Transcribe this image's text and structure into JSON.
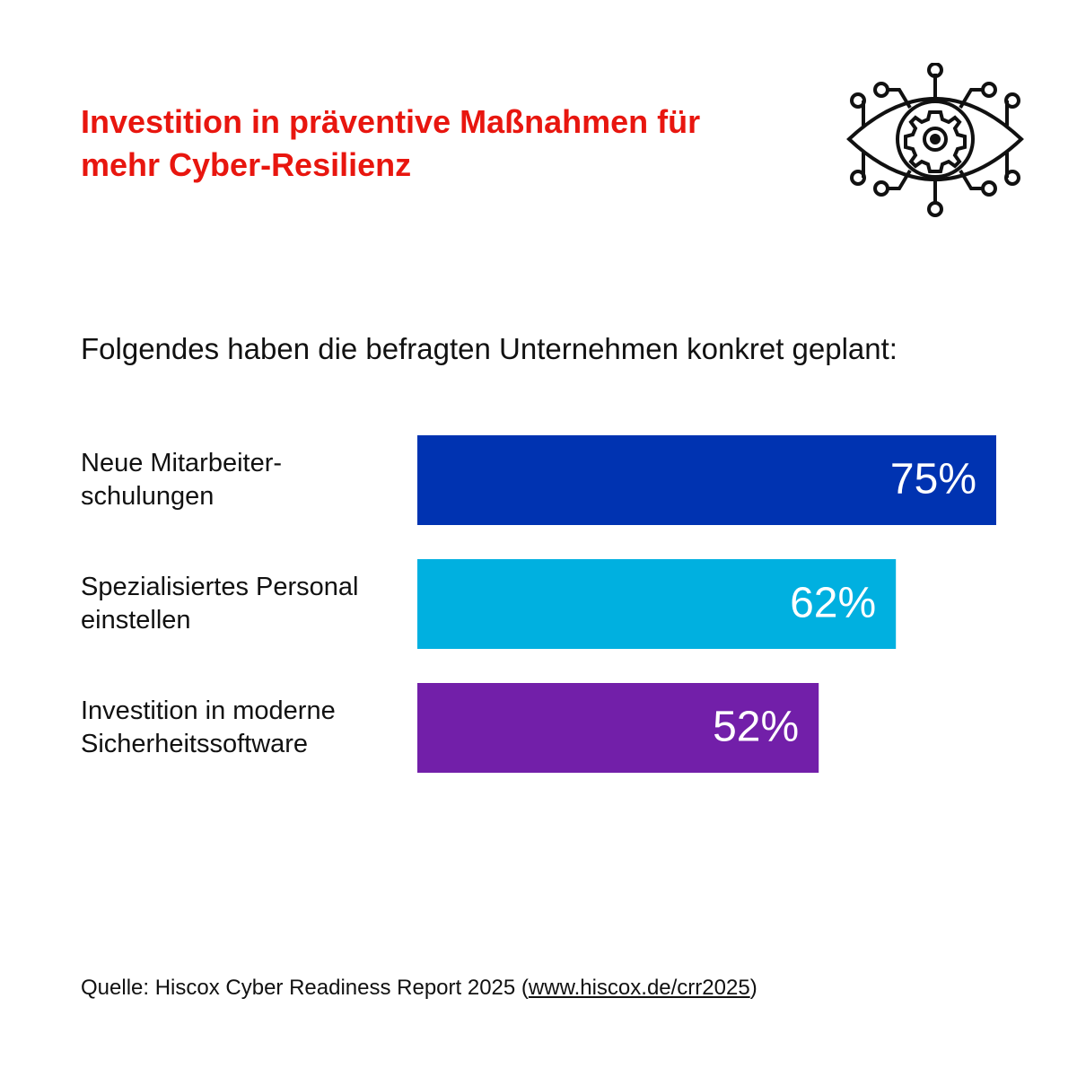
{
  "chart_data": {
    "type": "bar",
    "orientation": "horizontal",
    "title": "Investition in präventive Maßnahmen für mehr Cyber-Resilienz",
    "subtitle": "Folgendes haben die befragten Unternehmen konkret geplant:",
    "categories": [
      "Neue Mitarbeiter-schulungen",
      "Spezialisiertes Personal einstellen",
      "Investition in moderne Sicherheitssoftware"
    ],
    "values": [
      75,
      62,
      52
    ],
    "value_labels": [
      "75%",
      "62%",
      "52%"
    ],
    "colors": [
      "#0033b1",
      "#00b0e0",
      "#721fa9"
    ],
    "source": [
      "Quelle: Hiscox Cyber Readiness Report 2025 (",
      "www.hiscox.de/crr2025",
      ")"
    ]
  }
}
